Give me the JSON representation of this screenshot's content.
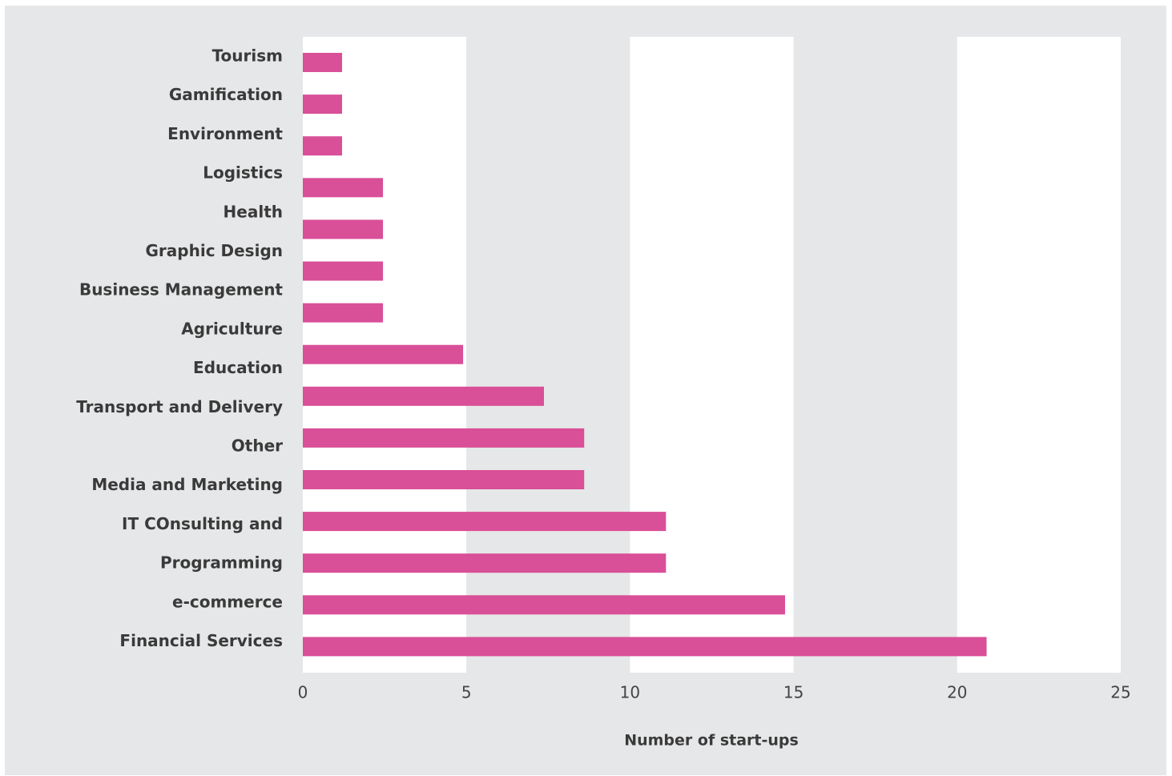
{
  "chart_data": {
    "type": "bar",
    "orientation": "horizontal",
    "x_label": "Number of start-ups",
    "categories": [
      "Tourism",
      "Gamification",
      "Environment",
      "Logistics",
      "Health",
      "Graphic Design",
      "Business Management",
      "Agriculture",
      "Education",
      "Transport and Delivery",
      "Other",
      "Media and Marketing",
      "IT COnsulting and",
      "Programming",
      "e-commerce",
      "Financial Services"
    ],
    "values": [
      null,
      1.2,
      1.2,
      1.2,
      2.45,
      2.45,
      2.45,
      2.45,
      4.9,
      7.37,
      8.6,
      8.6,
      11.1,
      11.1,
      14.74,
      20.9
    ],
    "color": "#d94f98",
    "xlim": [
      0,
      25
    ],
    "xticks": [
      0,
      5,
      10,
      15,
      20,
      25
    ],
    "band_colors": [
      "#ffffff",
      "#e6e7e8"
    ]
  }
}
